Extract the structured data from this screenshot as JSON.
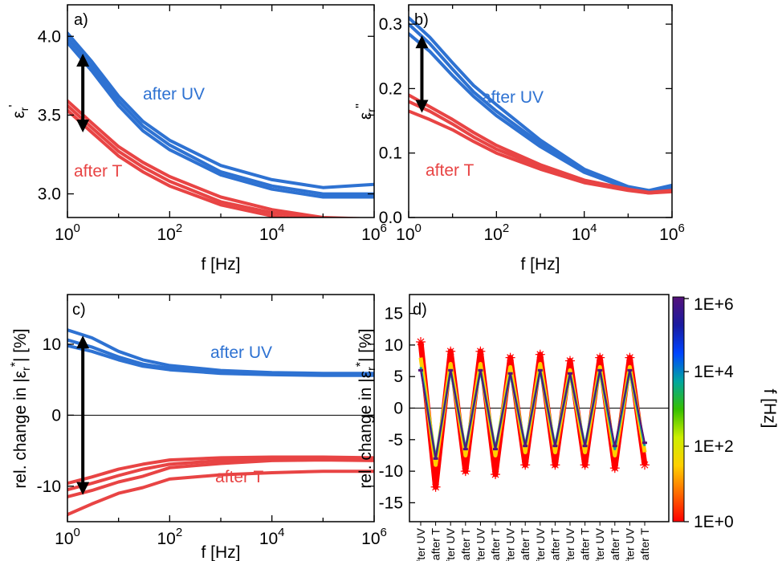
{
  "colors": {
    "uv": "#2e72d2",
    "t": "#e84444",
    "axis": "#000000"
  },
  "colorbar": {
    "label": "f [Hz]",
    "ticks": [
      "1E+0",
      "1E+2",
      "1E+4",
      "1E+6"
    ],
    "stops": [
      "#ff0000",
      "#ff6a00",
      "#ffd000",
      "#ccee00",
      "#35c000",
      "#00a6a0",
      "#0044ff",
      "#1a1aa0",
      "#55127a"
    ]
  },
  "chart_data": [
    {
      "type": "line",
      "panel_label": "a)",
      "xlabel": "f [Hz]",
      "ylabel": "ε_r'",
      "ylabel_main": "ε",
      "ylabel_sub": "r",
      "ylabel_sup": "'",
      "xscale": "log",
      "xlim": [
        1,
        1000000
      ],
      "ylim": [
        2.85,
        4.2
      ],
      "xticks": [
        "10^0",
        "10^2",
        "10^4",
        "10^6"
      ],
      "yticks": [
        {
          "v": 3.0,
          "t": "3.0"
        },
        {
          "v": 3.5,
          "t": "3.5"
        },
        {
          "v": 4.0,
          "t": "4.0"
        }
      ],
      "annotations": [
        {
          "text": "after UV"
        },
        {
          "text": "after T"
        }
      ],
      "arrow": {
        "x": 2,
        "y_top": 3.88,
        "y_bottom": 3.4
      },
      "x": [
        1,
        3,
        10,
        30,
        100,
        1000,
        10000,
        100000,
        1000000
      ],
      "series": [
        {
          "group": "uv",
          "values": [
            4.02,
            3.84,
            3.62,
            3.46,
            3.34,
            3.18,
            3.09,
            3.04,
            3.06
          ]
        },
        {
          "group": "uv",
          "values": [
            3.99,
            3.81,
            3.59,
            3.43,
            3.31,
            3.14,
            3.05,
            3.0,
            3.0
          ]
        },
        {
          "group": "uv",
          "values": [
            3.96,
            3.78,
            3.56,
            3.4,
            3.28,
            3.12,
            3.03,
            2.98,
            2.98
          ]
        },
        {
          "group": "t",
          "values": [
            3.59,
            3.45,
            3.3,
            3.2,
            3.11,
            2.98,
            2.9,
            2.85,
            2.84
          ]
        },
        {
          "group": "t",
          "values": [
            3.56,
            3.42,
            3.27,
            3.17,
            3.08,
            2.95,
            2.88,
            2.84,
            2.82
          ]
        },
        {
          "group": "t",
          "values": [
            3.53,
            3.39,
            3.24,
            3.14,
            3.05,
            2.93,
            2.86,
            2.82,
            2.81
          ]
        }
      ]
    },
    {
      "type": "line",
      "panel_label": "b)",
      "xlabel": "f [Hz]",
      "ylabel": "ε_r''",
      "ylabel_main": "ε",
      "ylabel_sub": "r",
      "ylabel_sup": "''",
      "xscale": "log",
      "xlim": [
        1,
        1000000
      ],
      "ylim": [
        0,
        0.33
      ],
      "xticks": [
        "10^0",
        "10^2",
        "10^4",
        "10^6"
      ],
      "yticks": [
        {
          "v": 0.0,
          "t": "0.0"
        },
        {
          "v": 0.1,
          "t": "0.1"
        },
        {
          "v": 0.2,
          "t": "0.2"
        },
        {
          "v": 0.3,
          "t": "0.3"
        }
      ],
      "annotations": [
        {
          "text": "after UV"
        },
        {
          "text": "after T"
        }
      ],
      "arrow": {
        "x": 2,
        "y_top": 0.28,
        "y_bottom": 0.165
      },
      "x": [
        1,
        3,
        10,
        30,
        100,
        1000,
        10000,
        100000,
        300000,
        1000000
      ],
      "series": [
        {
          "group": "uv",
          "values": [
            0.31,
            0.28,
            0.24,
            0.205,
            0.175,
            0.12,
            0.075,
            0.048,
            0.042,
            0.05
          ]
        },
        {
          "group": "uv",
          "values": [
            0.3,
            0.27,
            0.23,
            0.195,
            0.165,
            0.115,
            0.072,
            0.046,
            0.041,
            0.048
          ]
        },
        {
          "group": "uv",
          "values": [
            0.285,
            0.258,
            0.22,
            0.188,
            0.158,
            0.11,
            0.07,
            0.045,
            0.04,
            0.046
          ]
        },
        {
          "group": "t",
          "values": [
            0.19,
            0.172,
            0.152,
            0.132,
            0.112,
            0.082,
            0.058,
            0.044,
            0.039,
            0.042
          ]
        },
        {
          "group": "t",
          "values": [
            0.18,
            0.165,
            0.145,
            0.125,
            0.106,
            0.079,
            0.056,
            0.043,
            0.038,
            0.041
          ]
        },
        {
          "group": "t",
          "values": [
            0.165,
            0.152,
            0.136,
            0.118,
            0.1,
            0.075,
            0.054,
            0.042,
            0.038,
            0.04
          ]
        }
      ]
    },
    {
      "type": "line",
      "panel_label": "c)",
      "xlabel": "f [Hz]",
      "ylabel": "rel. change in |ε_r*| [%]",
      "ylabel_pre": "rel. change in |",
      "ylabel_main": "ε",
      "ylabel_sub": "r",
      "ylabel_sup": "*",
      "ylabel_post": "| [%]",
      "xscale": "log",
      "xlim": [
        1,
        1000000
      ],
      "ylim": [
        -15,
        17
      ],
      "xticks": [
        "10^0",
        "10^2",
        "10^4",
        "10^6"
      ],
      "yticks": [
        {
          "v": -10,
          "t": "-10"
        },
        {
          "v": 0,
          "t": "0"
        },
        {
          "v": 10,
          "t": "10"
        }
      ],
      "annotations": [
        {
          "text": "after UV"
        },
        {
          "text": "after T"
        }
      ],
      "arrow": {
        "x": 2,
        "y_top": 11,
        "y_bottom": -11
      },
      "x": [
        1,
        3,
        10,
        30,
        100,
        1000,
        10000,
        100000,
        1000000
      ],
      "series": [
        {
          "group": "uv",
          "values": [
            12.0,
            10.9,
            9.0,
            7.8,
            7.0,
            6.3,
            6.0,
            5.9,
            5.9
          ]
        },
        {
          "group": "uv",
          "values": [
            10.6,
            9.6,
            8.2,
            7.2,
            6.6,
            6.0,
            5.8,
            5.7,
            5.7
          ]
        },
        {
          "group": "uv",
          "values": [
            9.8,
            9.0,
            7.8,
            6.9,
            6.4,
            5.9,
            5.7,
            5.6,
            5.6
          ]
        },
        {
          "group": "t",
          "values": [
            -9.6,
            -8.7,
            -7.6,
            -6.9,
            -6.3,
            -6.0,
            -5.9,
            -5.9,
            -6.0
          ]
        },
        {
          "group": "t",
          "values": [
            -10.5,
            -9.6,
            -8.5,
            -7.6,
            -6.9,
            -6.4,
            -6.2,
            -6.1,
            -6.2
          ]
        },
        {
          "group": "t",
          "values": [
            -11.5,
            -10.6,
            -9.4,
            -8.6,
            -7.4,
            -6.8,
            -6.4,
            -6.3,
            -6.4
          ]
        },
        {
          "group": "t",
          "values": [
            -14.0,
            -12.5,
            -11.0,
            -10.2,
            -9.0,
            -8.4,
            -8.1,
            -7.9,
            -7.9
          ]
        }
      ]
    },
    {
      "type": "scatter",
      "panel_label": "d)",
      "ylabel": "rel. change in |ε_r*| [%]",
      "ylabel_pre": "rel. change in |",
      "ylabel_main": "ε",
      "ylabel_sub": "r",
      "ylabel_sup": "*",
      "ylabel_post": "| [%]",
      "ylim": [
        -18,
        18
      ],
      "yticks": [
        {
          "v": -15,
          "t": "-15"
        },
        {
          "v": -10,
          "t": "-10"
        },
        {
          "v": -5,
          "t": "-5"
        },
        {
          "v": 0,
          "t": "0"
        },
        {
          "v": 5,
          "t": "5"
        },
        {
          "v": 10,
          "t": "10"
        },
        {
          "v": 15,
          "t": "15"
        }
      ],
      "categories": [
        "after UV",
        "after T",
        "after UV",
        "after T",
        "after UV",
        "after T",
        "after UV",
        "after T",
        "after UV",
        "after T",
        "after UV",
        "after T",
        "after UV",
        "after T",
        "after UV",
        "after T"
      ],
      "series": [
        {
          "name": "1E+0",
          "values": [
            10.5,
            -12.5,
            9.0,
            -10.0,
            9.0,
            -10.5,
            8.0,
            -9.0,
            8.5,
            -9.0,
            7.5,
            -9.0,
            8.0,
            -9.5,
            8.0,
            -9.0
          ]
        },
        {
          "name": "1E+2",
          "values": [
            8.0,
            -9.0,
            7.0,
            -7.5,
            7.0,
            -7.5,
            6.5,
            -7.0,
            7.0,
            -7.0,
            6.0,
            -7.0,
            6.5,
            -7.5,
            6.5,
            -7.0
          ]
        },
        {
          "name": "1E+4",
          "values": [
            6.5,
            -8.0,
            6.0,
            -6.5,
            6.0,
            -6.5,
            5.5,
            -6.0,
            6.0,
            -6.0,
            5.5,
            -6.0,
            6.0,
            -6.5,
            6.0,
            -6.0
          ]
        },
        {
          "name": "1E+6",
          "values": [
            6.0,
            -8.0,
            6.0,
            -6.5,
            6.0,
            -6.5,
            5.5,
            -6.0,
            6.0,
            -6.0,
            5.5,
            -6.0,
            6.0,
            -6.0,
            6.0,
            -5.5
          ]
        }
      ]
    }
  ]
}
